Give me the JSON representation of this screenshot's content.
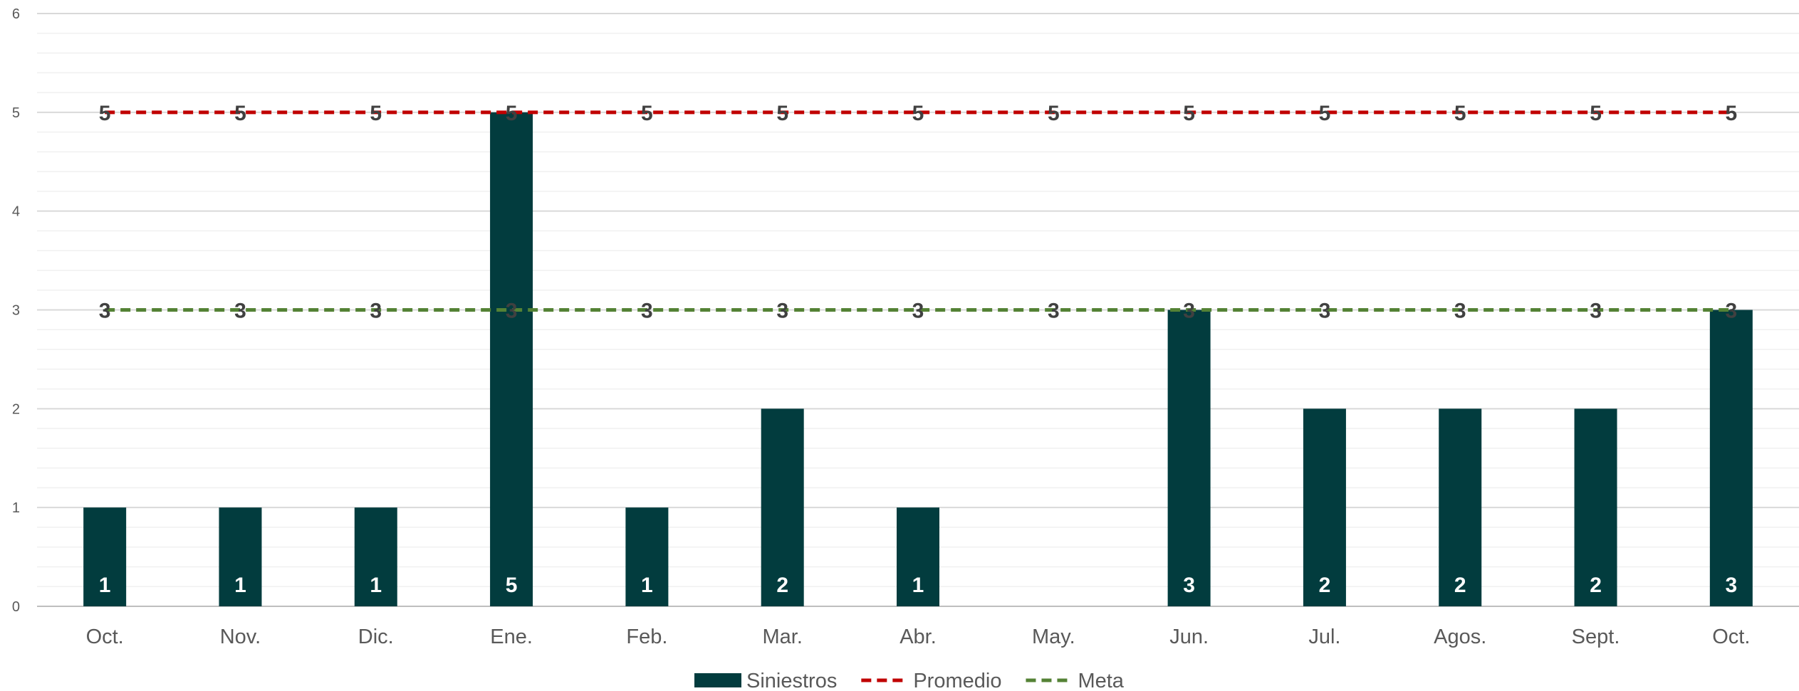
{
  "chart_data": {
    "type": "bar",
    "categories": [
      "Oct.",
      "Nov.",
      "Dic.",
      "Ene.",
      "Feb.",
      "Mar.",
      "Abr.",
      "May.",
      "Jun.",
      "Jul.",
      "Agos.",
      "Sept.",
      "Oct."
    ],
    "series": [
      {
        "name": "Siniestros",
        "kind": "bar",
        "color": "#023c3e",
        "values": [
          1,
          1,
          1,
          5,
          1,
          2,
          1,
          0,
          3,
          2,
          2,
          2,
          3
        ]
      },
      {
        "name": "Promedio",
        "kind": "line",
        "style": "dashed",
        "color": "#c00000",
        "values": [
          5,
          5,
          5,
          5,
          5,
          5,
          5,
          5,
          5,
          5,
          5,
          5,
          5
        ]
      },
      {
        "name": "Meta",
        "kind": "line",
        "style": "dashed",
        "color": "#548235",
        "values": [
          3,
          3,
          3,
          3,
          3,
          3,
          3,
          3,
          3,
          3,
          3,
          3,
          3
        ]
      }
    ],
    "title": "",
    "xlabel": "",
    "ylabel": "",
    "ylim": [
      0,
      6
    ],
    "yticks": [
      0,
      1,
      2,
      3,
      4,
      5,
      6
    ],
    "grid": true,
    "data_labels": true,
    "legend": "bottom-center"
  }
}
